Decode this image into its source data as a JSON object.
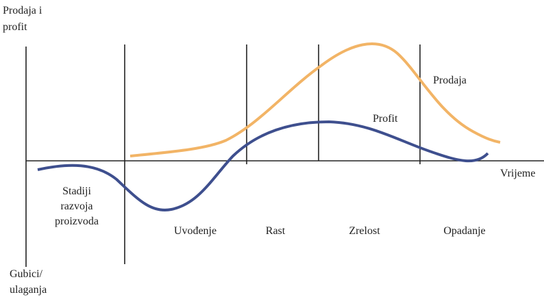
{
  "axes": {
    "y_label": [
      "Prodaja i",
      "profit"
    ],
    "y_negative_label": [
      "Gubici/",
      "ulaganja"
    ],
    "x_label": "Vrijeme"
  },
  "curves": [
    {
      "label": "Prodaja"
    },
    {
      "label": "Profit"
    }
  ],
  "stages": [
    {
      "lines": [
        "Stadiji",
        "razvoja",
        "proizvoda"
      ]
    },
    {
      "lines": [
        "Uvođenje"
      ]
    },
    {
      "lines": [
        "Rast"
      ]
    },
    {
      "lines": [
        "Zrelost"
      ]
    },
    {
      "lines": [
        "Opadanje"
      ]
    }
  ]
}
